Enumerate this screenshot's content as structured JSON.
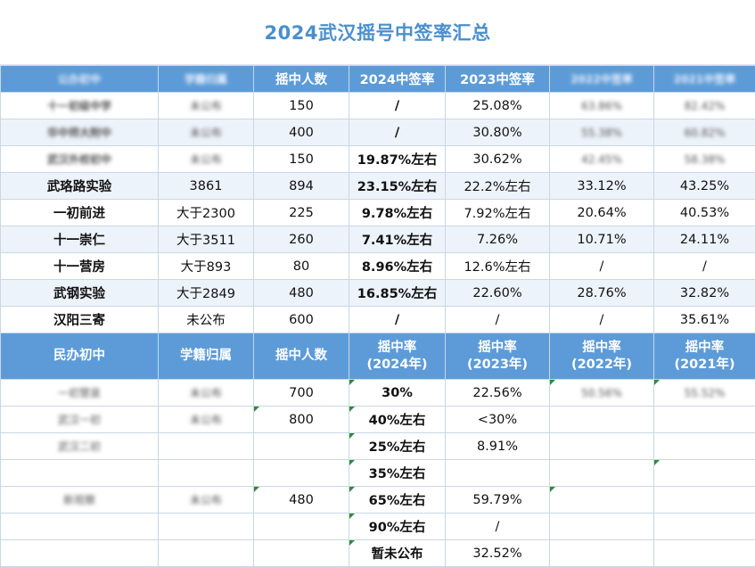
{
  "title": "2024武汉摇号中签率汇总",
  "colors": {
    "header_bg": "#5d9bd8",
    "title": "#4a8fcf",
    "alt_row": "#edf3fa"
  },
  "public_header": [
    "公办初中",
    "学籍归属",
    "摇中人数",
    "2024中签率",
    "2023中签率",
    "2022中签率",
    "2021中签率"
  ],
  "public_rows": [
    {
      "name": "十一初级中学",
      "roll": "未公布",
      "count": "150",
      "r2024": "/",
      "r2023": "25.08%",
      "r2022": "63.86%",
      "r2021": "82.42%"
    },
    {
      "name": "华中师大附中",
      "roll": "未公布",
      "count": "400",
      "r2024": "/",
      "r2023": "30.80%",
      "r2022": "55.38%",
      "r2021": "60.82%"
    },
    {
      "name": "武汉外校初中",
      "roll": "未公布",
      "count": "150",
      "r2024": "19.87%左右",
      "r2023": "30.62%",
      "r2022": "42.45%",
      "r2021": "58.38%"
    },
    {
      "name": "武珞路实验",
      "roll": "3861",
      "count": "894",
      "r2024": "23.15%左右",
      "r2023": "22.2%左右",
      "r2022": "33.12%",
      "r2021": "43.25%"
    },
    {
      "name": "一初前进",
      "roll": "大于2300",
      "count": "225",
      "r2024": "9.78%左右",
      "r2023": "7.92%左右",
      "r2022": "20.64%",
      "r2021": "40.53%"
    },
    {
      "name": "十一崇仁",
      "roll": "大于3511",
      "count": "260",
      "r2024": "7.41%左右",
      "r2023": "7.26%",
      "r2022": "10.71%",
      "r2021": "24.11%"
    },
    {
      "name": "十一营房",
      "roll": "大于893",
      "count": "80",
      "r2024": "8.96%左右",
      "r2023": "12.6%左右",
      "r2022": "/",
      "r2021": "/"
    },
    {
      "name": "武钢实验",
      "roll": "大于2849",
      "count": "480",
      "r2024": "16.85%左右",
      "r2023": "22.60%",
      "r2022": "28.76%",
      "r2021": "32.82%"
    },
    {
      "name": "汉阳三寄",
      "roll": "未公布",
      "count": "600",
      "r2024": "/",
      "r2023": "/",
      "r2022": "/",
      "r2021": "35.61%"
    }
  ],
  "private_header": {
    "c0": "民办初中",
    "c1": "学籍归属",
    "c2": "摇中人数",
    "c3a": "摇中率",
    "c3b": "(2024年)",
    "c4a": "摇中率",
    "c4b": "(2023年)",
    "c5a": "摇中率",
    "c5b": "(2022年)",
    "c6a": "摇中率",
    "c6b": "(2021年)"
  },
  "private_rows": [
    {
      "name": "一初慧泉",
      "roll": "未公布",
      "count": "700",
      "r2024": "30%",
      "r2023": "22.56%",
      "r2022": "50.56%",
      "r2021": "55.52%"
    },
    {
      "name": "武汉一初",
      "roll": "未公布",
      "count": "800",
      "r2024": "40%左右",
      "r2023": "<30%",
      "r2022": "",
      "r2021": ""
    },
    {
      "name": "武汉二初",
      "roll": "",
      "count": "",
      "r2024": "25%左右",
      "r2023": "8.91%",
      "r2022": "",
      "r2021": ""
    },
    {
      "name": "",
      "roll": "",
      "count": "",
      "r2024": "35%左右",
      "r2023": "",
      "r2022": "",
      "r2021": ""
    },
    {
      "name": "新观察",
      "roll": "未公布",
      "count": "480",
      "r2024": "65%左右",
      "r2023": "59.79%",
      "r2022": "",
      "r2021": ""
    },
    {
      "name": "",
      "roll": "",
      "count": "",
      "r2024": "90%左右",
      "r2023": "/",
      "r2022": "",
      "r2021": ""
    },
    {
      "name": "",
      "roll": "",
      "count": "",
      "r2024": "暂未公布",
      "r2023": "32.52%",
      "r2022": "",
      "r2021": ""
    }
  ]
}
